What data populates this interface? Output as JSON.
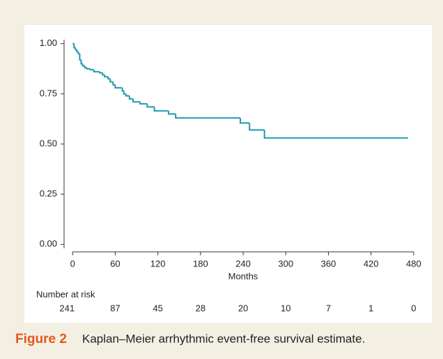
{
  "chart_data": {
    "type": "step",
    "xlabel": "Months",
    "color": "#1a9aaa",
    "x": [
      0,
      2,
      4,
      6,
      8,
      10,
      12,
      14,
      17,
      20,
      25,
      30,
      38,
      42,
      45,
      50,
      53,
      57,
      60,
      70,
      72,
      75,
      80,
      85,
      95,
      105,
      115,
      135,
      145,
      236,
      249,
      270,
      472
    ],
    "values": [
      1.0,
      0.98,
      0.97,
      0.96,
      0.95,
      0.92,
      0.9,
      0.89,
      0.88,
      0.875,
      0.87,
      0.86,
      0.855,
      0.845,
      0.835,
      0.825,
      0.81,
      0.795,
      0.78,
      0.765,
      0.75,
      0.74,
      0.725,
      0.71,
      0.7,
      0.685,
      0.665,
      0.65,
      0.63,
      0.605,
      0.57,
      0.53,
      0.53
    ],
    "xlim": [
      -12,
      486
    ],
    "ylim": [
      -0.02,
      1.02
    ],
    "xticks": [
      0,
      60,
      120,
      180,
      240,
      300,
      360,
      420,
      480
    ],
    "yticks": [
      {
        "value": 0,
        "label": "0.00"
      },
      {
        "value": 0.25,
        "label": "0.25"
      },
      {
        "value": 0.5,
        "label": "0.50"
      },
      {
        "value": 0.75,
        "label": "0.75"
      },
      {
        "value": 1,
        "label": "1.00"
      }
    ],
    "risk_label": "Number at risk",
    "risk_counts": [
      241,
      87,
      45,
      28,
      20,
      10,
      7,
      1,
      0
    ],
    "figure_label": "Figure 2",
    "caption": "Kaplan–Meier arrhythmic event-free survival estimate."
  }
}
